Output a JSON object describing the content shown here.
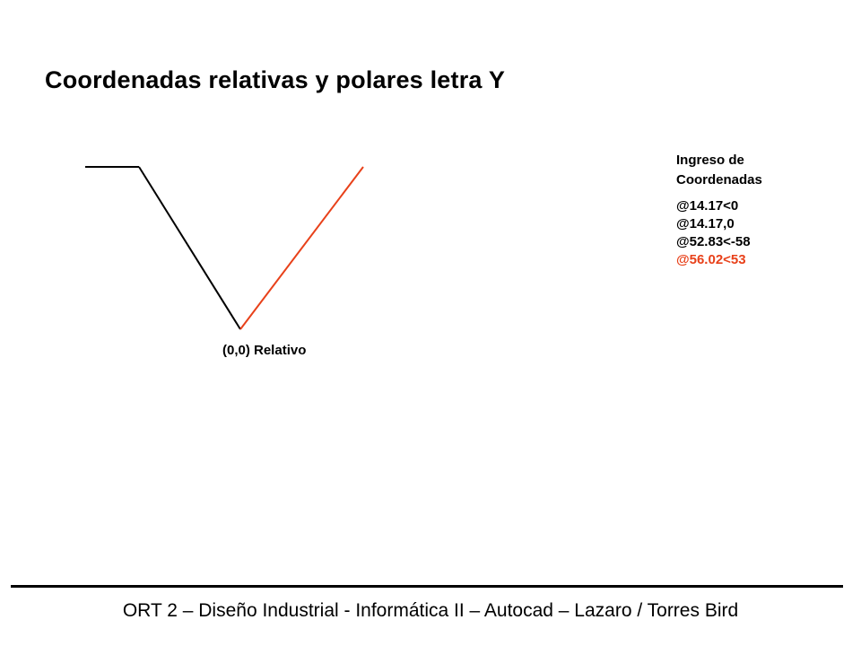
{
  "title": "Coordenadas relativas y polares letra Y",
  "drawing": {
    "origin_label": "(0,0) Relativo",
    "colors": {
      "line": "#000000",
      "highlight": "#e8411a"
    }
  },
  "coordinates_panel": {
    "heading_line1": "Ingreso de",
    "heading_line2": "Coordenadas",
    "entries": [
      {
        "text": "@14.17<0",
        "color": "#000000"
      },
      {
        "text": "@14.17,0",
        "color": "#000000"
      },
      {
        "text": "@52.83<-58",
        "color": "#000000"
      },
      {
        "text": "@56.02<53",
        "color": "#e8411a"
      }
    ]
  },
  "footer": {
    "text": "ORT 2 – Diseño Industrial - Informática II – Autocad – Lazaro / Torres Bird"
  }
}
